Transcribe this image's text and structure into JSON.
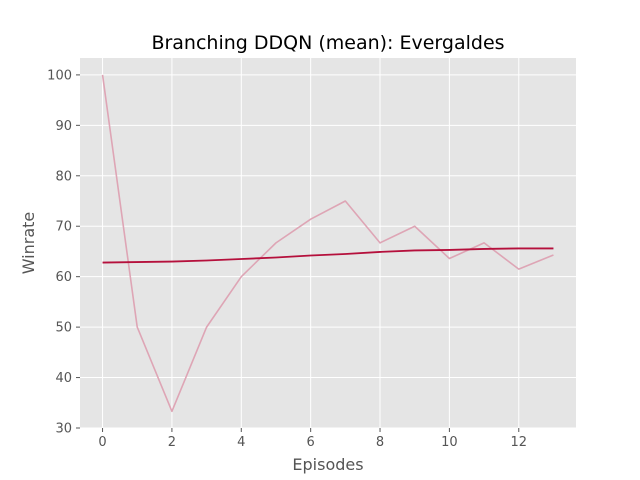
{
  "chart_data": {
    "type": "line",
    "title": "Branching DDQN (mean): Evergaldes",
    "xlabel": "Episodes",
    "ylabel": "Winrate",
    "xlim": [
      -0.65,
      13.65
    ],
    "ylim": [
      30,
      103.35
    ],
    "xticks": [
      0,
      2,
      4,
      6,
      8,
      10,
      12
    ],
    "yticks": [
      30,
      40,
      50,
      60,
      70,
      80,
      90,
      100
    ],
    "grid": true,
    "background": "#e5e5e5",
    "series": [
      {
        "x": [
          0,
          1,
          2,
          3,
          4,
          5,
          6,
          7,
          8,
          9,
          10,
          11,
          12,
          13
        ],
        "values": [
          100,
          50,
          33.3,
          50,
          60,
          66.7,
          71.4,
          75,
          66.7,
          70,
          63.6,
          66.7,
          61.5,
          64.3
        ],
        "color": "#dea5b5"
      },
      {
        "x": [
          0,
          1,
          2,
          3,
          4,
          5,
          6,
          7,
          8,
          9,
          10,
          11,
          12,
          13
        ],
        "values": [
          62.8,
          62.9,
          63.0,
          63.2,
          63.5,
          63.8,
          64.2,
          64.5,
          64.9,
          65.2,
          65.3,
          65.5,
          65.6,
          65.6
        ],
        "color": "#b5103c"
      }
    ]
  }
}
